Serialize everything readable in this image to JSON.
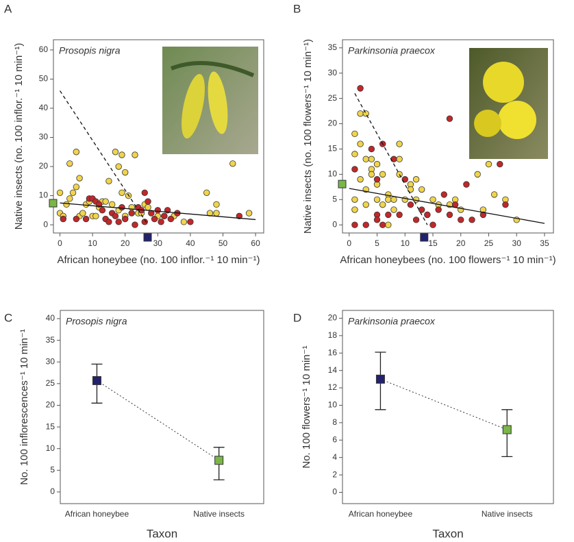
{
  "chart_data": [
    {
      "type": "scatter",
      "label": "A",
      "title": "Prosopis nigra",
      "x_label": "African honeybee (no. 100 inflor.⁻¹ 10 min⁻¹)",
      "y_label": "Native insects (no. 100 inflor.⁻¹ 10 min⁻¹)",
      "xlim": [
        -2,
        62.5
      ],
      "ylim": [
        -2.8,
        63.5
      ],
      "xticks": [
        0,
        10,
        20,
        30,
        40,
        50,
        60
      ],
      "yticks": [
        0,
        10,
        20,
        30,
        40,
        50,
        60
      ],
      "series": [
        {
          "color": "#f0d44c",
          "x": [
            0,
            0,
            1,
            2,
            3,
            3,
            4,
            5,
            5,
            6,
            6,
            7,
            8,
            9,
            10,
            11,
            12,
            13,
            14,
            15,
            16,
            17,
            18,
            18,
            19,
            19,
            20,
            20,
            21,
            22,
            23,
            24,
            25,
            26,
            27,
            30,
            32,
            35,
            38,
            45,
            46,
            48,
            48,
            53,
            58
          ],
          "values": [
            11,
            4,
            3,
            7,
            21,
            9,
            11,
            25,
            13,
            16,
            3,
            4,
            7,
            8,
            3,
            3,
            6,
            8,
            8,
            15,
            7,
            25,
            20,
            5,
            24,
            11,
            18,
            3,
            10,
            6,
            24,
            4,
            4,
            7,
            6,
            3,
            3,
            3,
            1,
            11,
            4,
            7,
            4,
            21,
            4
          ]
        },
        {
          "color": "#c0282a",
          "x": [
            1,
            5,
            8,
            9,
            10,
            11,
            12,
            13,
            14,
            15,
            16,
            17,
            18,
            19,
            20,
            22,
            23,
            24,
            25,
            26,
            26,
            27,
            28,
            29,
            30,
            31,
            32,
            33,
            34,
            36,
            40,
            55
          ],
          "values": [
            2,
            2,
            2,
            9,
            9,
            8,
            7,
            5,
            2,
            1,
            4,
            3,
            1,
            6,
            2,
            4,
            0,
            6,
            5,
            11,
            1,
            8,
            4,
            2,
            5,
            1,
            3,
            5,
            2,
            4,
            1,
            3
          ]
        }
      ],
      "lines": [
        {
          "x": [
            0,
            27
          ],
          "values": [
            46,
            0
          ],
          "dashed": true
        },
        {
          "x": [
            0,
            60
          ],
          "values": [
            7.5,
            1.8
          ],
          "dashed": false
        }
      ],
      "axis_markers": [
        {
          "axis": "y",
          "value": 7.3,
          "color": "#7ab648"
        },
        {
          "axis": "x",
          "value": 27,
          "color": "#22226e"
        }
      ]
    },
    {
      "type": "scatter",
      "label": "B",
      "title": "Parkinsonia praecox",
      "x_label": "African honeybees (no. 100 flowers⁻¹ 10 min⁻¹)",
      "y_label": "Native insects (no. 100 flowers⁻¹ 10 min⁻¹)",
      "xlim": [
        -1.2,
        36.6
      ],
      "ylim": [
        -1.6,
        36.6
      ],
      "xticks": [
        0,
        5,
        10,
        15,
        20,
        25,
        30,
        35
      ],
      "yticks": [
        0,
        5,
        10,
        15,
        20,
        25,
        30,
        35
      ],
      "series": [
        {
          "color": "#f0d44c",
          "x": [
            1,
            1,
            1,
            1,
            2,
            2,
            2,
            3,
            3,
            3,
            3,
            4,
            4,
            4,
            5,
            5,
            5,
            6,
            6,
            7,
            7,
            7,
            8,
            8,
            9,
            9,
            9,
            10,
            11,
            11,
            12,
            12,
            13,
            14,
            15,
            16,
            18,
            19,
            20,
            23,
            24,
            25,
            26,
            28,
            30
          ],
          "values": [
            18,
            14,
            5,
            3,
            22,
            16,
            9,
            22,
            13,
            7,
            4,
            11,
            13,
            10,
            8,
            12,
            5,
            4,
            10,
            6,
            5,
            0,
            5,
            3,
            16,
            13,
            10,
            5,
            8,
            7,
            9,
            5,
            7,
            2,
            5,
            4,
            4,
            5,
            3,
            10,
            3,
            12,
            6,
            5,
            1
          ]
        },
        {
          "color": "#c0282a",
          "x": [
            2,
            1,
            1,
            3,
            4,
            5,
            5,
            5,
            6,
            6,
            7,
            8,
            9,
            10,
            11,
            12,
            13,
            14,
            15,
            16,
            17,
            18,
            18,
            19,
            20,
            21,
            22,
            24,
            27,
            28
          ],
          "values": [
            27,
            11,
            0,
            0,
            15,
            9,
            2,
            1,
            16,
            0,
            2,
            13,
            2,
            9,
            4,
            1,
            3,
            2,
            0,
            3,
            6,
            21,
            2,
            4,
            1,
            8,
            1,
            2,
            12,
            4
          ]
        }
      ],
      "lines": [
        {
          "x": [
            1,
            14
          ],
          "values": [
            26,
            0
          ],
          "dashed": true
        },
        {
          "x": [
            0,
            35
          ],
          "values": [
            7.2,
            0.3
          ],
          "dashed": false
        }
      ],
      "axis_markers": [
        {
          "axis": "y",
          "value": 8,
          "color": "#7ab648"
        },
        {
          "axis": "x",
          "value": 13.5,
          "color": "#22226e"
        }
      ]
    },
    {
      "type": "errorbar",
      "label": "C",
      "title": "Prosopis nigra",
      "x_label": "Taxon",
      "y_label": "No. 100 inflorescences⁻¹ 10 min⁻¹",
      "ylim": [
        -2.7,
        41.9
      ],
      "yticks": [
        0,
        5,
        10,
        15,
        20,
        25,
        30,
        35,
        40
      ],
      "categories": [
        "African honeybee",
        "Native insects"
      ],
      "values": [
        25.7,
        7.3
      ],
      "lower": [
        20.5,
        2.8
      ],
      "upper": [
        29.5,
        10.3
      ],
      "colors": [
        "#22226e",
        "#7ab648"
      ]
    },
    {
      "type": "errorbar",
      "label": "D",
      "title": "Parkinsonia praecox",
      "x_label": "Taxon",
      "y_label": "No. 100 flowers⁻¹ 10 min⁻¹",
      "ylim": [
        -1.3,
        20.9
      ],
      "yticks": [
        0,
        2,
        4,
        6,
        8,
        10,
        12,
        14,
        16,
        18,
        20
      ],
      "categories": [
        "African honeybee",
        "Native insects"
      ],
      "values": [
        13,
        7.2
      ],
      "lower": [
        9.5,
        4.1
      ],
      "upper": [
        16.1,
        9.5
      ],
      "colors": [
        "#22226e",
        "#7ab648"
      ]
    }
  ]
}
